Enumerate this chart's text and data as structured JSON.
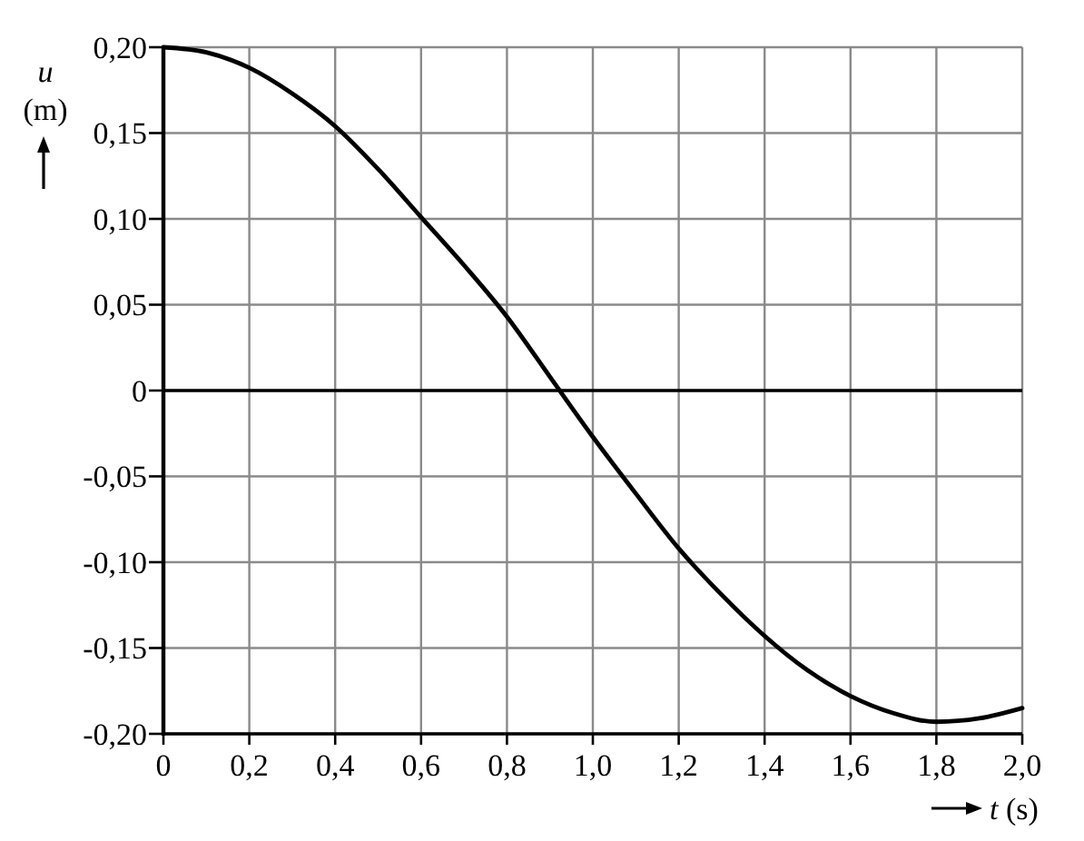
{
  "chart_data": {
    "type": "line",
    "xlabel": "t (s)",
    "ylabel": "u (m)",
    "x": [
      0,
      0.1,
      0.2,
      0.3,
      0.4,
      0.5,
      0.6,
      0.7,
      0.8,
      0.9,
      1.0,
      1.1,
      1.2,
      1.3,
      1.4,
      1.5,
      1.6,
      1.7,
      1.8,
      1.9,
      2.0
    ],
    "series": [
      {
        "color": "#000000",
        "values": [
          0.2,
          0.197,
          0.188,
          0.173,
          0.154,
          0.129,
          0.101,
          0.073,
          0.043,
          0.008,
          -0.027,
          -0.06,
          -0.092,
          -0.119,
          -0.143,
          -0.163,
          -0.178,
          -0.188,
          -0.193,
          -0.191,
          -0.185
        ]
      }
    ],
    "xlim": [
      0,
      2
    ],
    "ylim": [
      -0.2,
      0.2
    ],
    "xticks": [
      0,
      {
        "value": 0.2,
        "label": "0,2"
      },
      {
        "value": 0.4,
        "label": "0,4"
      },
      {
        "value": 0.6,
        "label": "0,6"
      },
      {
        "value": 0.8,
        "label": "0,8"
      },
      {
        "value": 1,
        "label": "1,0"
      },
      {
        "value": 1.2,
        "label": "1,2"
      },
      {
        "value": 1.4,
        "label": "1,4"
      },
      {
        "value": 1.6,
        "label": "1,6"
      },
      {
        "value": 1.8,
        "label": "1,8"
      },
      {
        "value": 2,
        "label": "2,0"
      }
    ],
    "yticks": [
      {
        "value": -0.2,
        "label": "-0,20"
      },
      {
        "value": -0.15,
        "label": "-0,15"
      },
      {
        "value": -0.1,
        "label": "-0,10"
      },
      {
        "value": -0.05,
        "label": "-0,05"
      },
      0,
      {
        "value": 0.05,
        "label": "0,05"
      },
      {
        "value": 0.1,
        "label": "0,10"
      },
      {
        "value": 0.15,
        "label": "0,15"
      },
      {
        "value": 0.2,
        "label": "0,20"
      }
    ],
    "grid": true,
    "line_style": "solid",
    "ref_lines": [
      {
        "axis": "y",
        "value": 0,
        "color": "#000000"
      }
    ]
  }
}
